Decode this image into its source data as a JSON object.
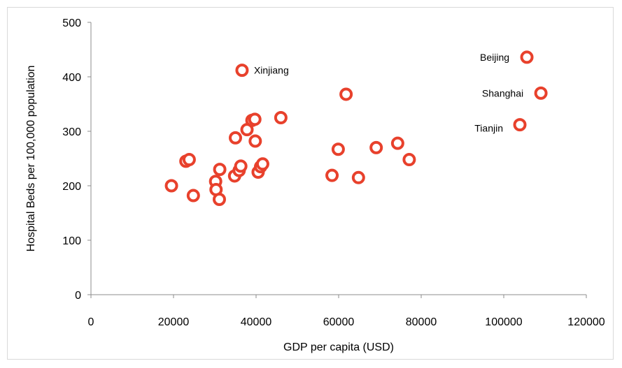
{
  "chart_data": {
    "type": "scatter",
    "title": "",
    "xlabel": "GDP per capita (USD)",
    "ylabel": "Hospital Beds per 100,000 population",
    "xlim": [
      0,
      120000
    ],
    "ylim": [
      0,
      500
    ],
    "xticks": [
      0,
      20000,
      40000,
      60000,
      80000,
      100000,
      120000
    ],
    "yticks": [
      0,
      100,
      200,
      300,
      400,
      500
    ],
    "grid": false,
    "legend": "none",
    "marker_color": "#e8412c",
    "series": [
      {
        "points": [
          {
            "x": 19500,
            "y": 200
          },
          {
            "x": 23000,
            "y": 245
          },
          {
            "x": 23800,
            "y": 248
          },
          {
            "x": 24800,
            "y": 182
          },
          {
            "x": 30200,
            "y": 208
          },
          {
            "x": 30300,
            "y": 193
          },
          {
            "x": 31100,
            "y": 175
          },
          {
            "x": 31200,
            "y": 230
          },
          {
            "x": 34800,
            "y": 218
          },
          {
            "x": 35000,
            "y": 288
          },
          {
            "x": 35900,
            "y": 228
          },
          {
            "x": 36300,
            "y": 236
          },
          {
            "x": 36600,
            "y": 412,
            "label": "Xinjiang"
          },
          {
            "x": 37800,
            "y": 303
          },
          {
            "x": 39000,
            "y": 320
          },
          {
            "x": 39700,
            "y": 322
          },
          {
            "x": 39800,
            "y": 282
          },
          {
            "x": 40500,
            "y": 225
          },
          {
            "x": 41100,
            "y": 235
          },
          {
            "x": 41600,
            "y": 240
          },
          {
            "x": 46000,
            "y": 325
          },
          {
            "x": 58400,
            "y": 219
          },
          {
            "x": 59900,
            "y": 267
          },
          {
            "x": 61800,
            "y": 368
          },
          {
            "x": 64800,
            "y": 215
          },
          {
            "x": 69100,
            "y": 270
          },
          {
            "x": 74300,
            "y": 278
          },
          {
            "x": 77100,
            "y": 248
          },
          {
            "x": 103900,
            "y": 312,
            "label": "Tianjin"
          },
          {
            "x": 105600,
            "y": 436,
            "label": "Beijing"
          },
          {
            "x": 109000,
            "y": 370,
            "label": "Shanghai"
          }
        ]
      }
    ]
  }
}
